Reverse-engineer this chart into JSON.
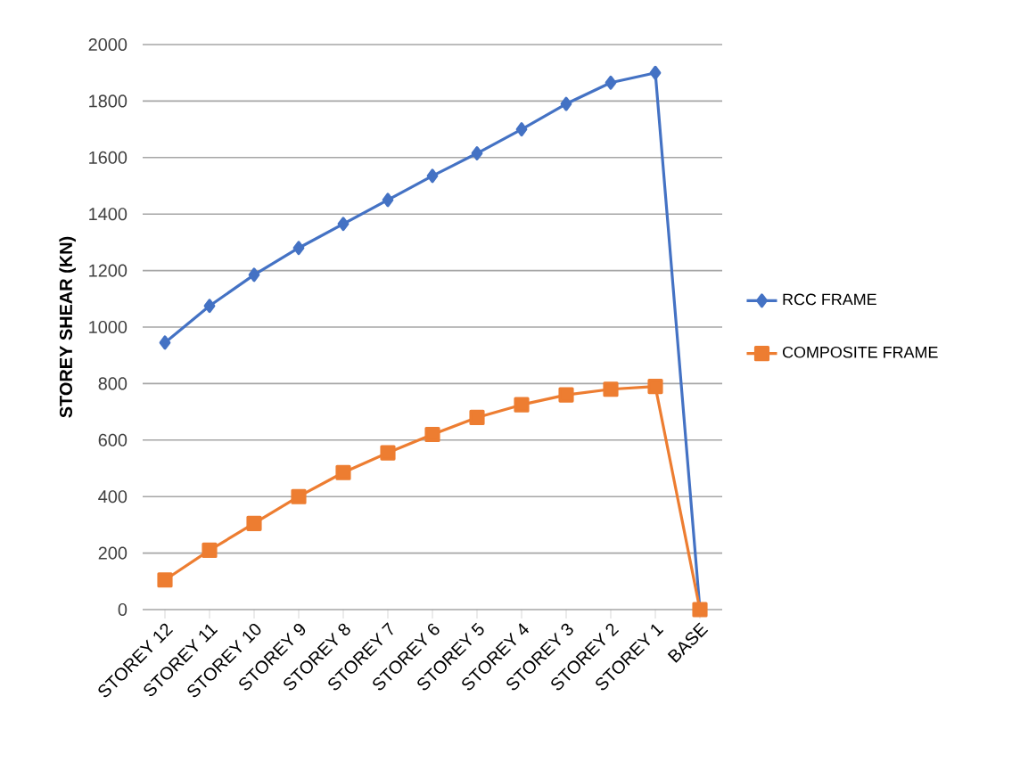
{
  "chart_data": {
    "type": "line",
    "ylabel": "STOREY SHEAR (KN)",
    "categories": [
      "STOREY 12",
      "STOREY 11",
      "STOREY 10",
      "STOREY 9",
      "STOREY 8",
      "STOREY 7",
      "STOREY 6",
      "STOREY 5",
      "STOREY 4",
      "STOREY 3",
      "STOREY 2",
      "STOREY 1",
      "BASE"
    ],
    "series": [
      {
        "name": "RCC FRAME",
        "color": "#4472c4",
        "marker": "diamond",
        "values": [
          945,
          1075,
          1185,
          1280,
          1365,
          1450,
          1535,
          1615,
          1700,
          1790,
          1865,
          1900,
          0
        ]
      },
      {
        "name": "COMPOSITE FRAME",
        "color": "#ed7d31",
        "marker": "square",
        "values": [
          105,
          210,
          305,
          400,
          485,
          555,
          620,
          680,
          725,
          760,
          780,
          790,
          0
        ]
      }
    ],
    "ylim": [
      0,
      2000
    ],
    "yticks": [
      0,
      200,
      400,
      600,
      800,
      1000,
      1200,
      1400,
      1600,
      1800,
      2000
    ],
    "grid": "y",
    "legend": "right"
  }
}
